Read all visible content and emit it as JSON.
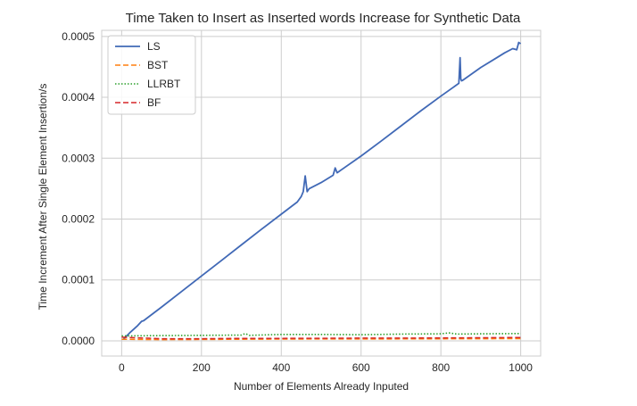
{
  "cell": {
    "collapse_icon": "chevron-down-icon"
  },
  "chart_data": {
    "type": "line",
    "title": "Time Taken to Insert as Inserted words Increase for Synthetic Data",
    "xlabel": "Number of Elements Already Inputed",
    "ylabel": "Time Increment After Single Element Insertion/s",
    "xlim": [
      -50,
      1050
    ],
    "ylim": [
      -2.5e-05,
      0.00051
    ],
    "xticks": [
      0,
      200,
      400,
      600,
      800,
      1000
    ],
    "yticks": [
      0.0,
      0.0001,
      0.0002,
      0.0003,
      0.0004,
      0.0005
    ],
    "xtick_labels": [
      "0",
      "200",
      "400",
      "600",
      "800",
      "1000"
    ],
    "ytick_labels": [
      "0.0000",
      "0.0001",
      "0.0002",
      "0.0003",
      "0.0004",
      "0.0005"
    ],
    "grid": true,
    "legend_position": "top-left",
    "series": [
      {
        "name": "LS",
        "color": "#4169b6",
        "style": "solid",
        "x": [
          5,
          20,
          40,
          50,
          55,
          100,
          150,
          200,
          250,
          300,
          350,
          400,
          440,
          450,
          455,
          460,
          465,
          470,
          500,
          530,
          535,
          540,
          600,
          650,
          700,
          750,
          800,
          845,
          848,
          850,
          852,
          855,
          900,
          940,
          960,
          980,
          990,
          995,
          1000
        ],
        "y": [
          3e-06,
          1.3e-05,
          2.5e-05,
          3.2e-05,
          3.3e-05,
          5.55e-05,
          8.1e-05,
          0.0001065,
          0.000132,
          0.0001575,
          0.000183,
          0.000208,
          0.000228,
          0.000237,
          0.000245,
          0.000271,
          0.000245,
          0.00025,
          0.00026,
          0.000272,
          0.000284,
          0.000276,
          0.0003035,
          0.000328,
          0.000353,
          0.000378,
          0.000402,
          0.000423,
          0.000465,
          0.00043,
          0.000427,
          0.000428,
          0.000449,
          0.000465,
          0.000473,
          0.00048,
          0.000478,
          0.00049,
          0.000488
        ]
      },
      {
        "name": "BST",
        "color": "#ff7f0e",
        "style": "dashed",
        "x": [
          0,
          100,
          200,
          300,
          400,
          500,
          600,
          700,
          800,
          900,
          1000
        ],
        "y": [
          2.5e-06,
          2e-06,
          2.2e-06,
          2.5e-06,
          2.8e-06,
          3e-06,
          3e-06,
          3.2e-06,
          3.3e-06,
          3.5e-06,
          3.6e-06
        ]
      },
      {
        "name": "LLRBT",
        "color": "#2ca02c",
        "style": "dotted",
        "x": [
          0,
          100,
          200,
          300,
          310,
          320,
          400,
          500,
          600,
          700,
          800,
          820,
          840,
          900,
          1000
        ],
        "y": [
          8e-06,
          8.5e-06,
          9e-06,
          9.5e-06,
          1.2e-05,
          9e-06,
          1.05e-05,
          1.05e-05,
          1e-05,
          1.1e-05,
          1.15e-05,
          1.3e-05,
          1.1e-05,
          1.15e-05,
          1.2e-05
        ]
      },
      {
        "name": "BF",
        "color": "#d62728",
        "style": "dashed",
        "x": [
          0,
          100,
          200,
          300,
          400,
          500,
          600,
          700,
          800,
          900,
          1000
        ],
        "y": [
          6e-06,
          3.5e-06,
          3.5e-06,
          4e-06,
          4e-06,
          4.2e-06,
          4.5e-06,
          4.5e-06,
          4.8e-06,
          5e-06,
          5.5e-06
        ]
      }
    ]
  }
}
